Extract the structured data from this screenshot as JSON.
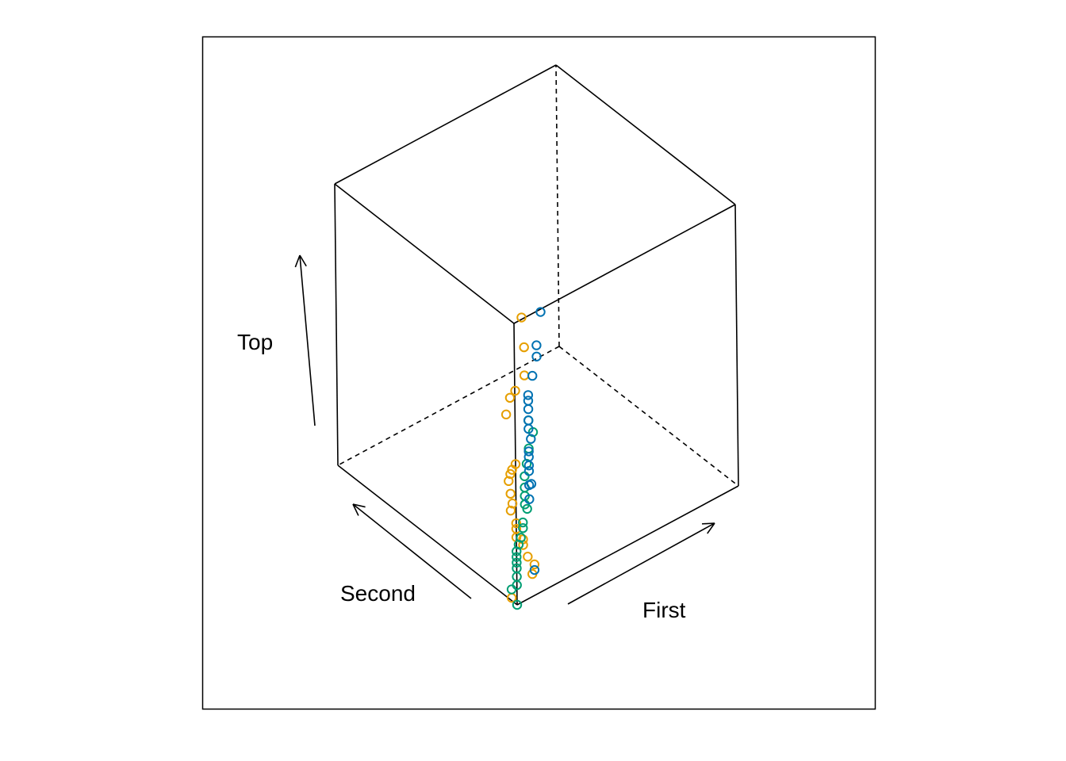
{
  "chart_data": {
    "type": "scatter3d",
    "axes": {
      "first": {
        "label": "First",
        "range": [
          0,
          1
        ]
      },
      "second": {
        "label": "Second",
        "range": [
          0,
          1
        ]
      },
      "top": {
        "label": "Top",
        "range": [
          0,
          1
        ]
      }
    },
    "box": true,
    "series": [
      {
        "color": "#E69F00",
        "points": [
          [
            0.05,
            0.02,
            0.99
          ],
          [
            0.06,
            0.02,
            0.88
          ],
          [
            0.06,
            0.02,
            0.78
          ],
          [
            0.05,
            0.06,
            0.71
          ],
          [
            0.05,
            0.09,
            0.67
          ],
          [
            0.04,
            0.1,
            0.61
          ],
          [
            0.0,
            0.0,
            0.5
          ],
          [
            0.0,
            0.02,
            0.47
          ],
          [
            0.0,
            0.03,
            0.45
          ],
          [
            0.0,
            0.04,
            0.42
          ],
          [
            0.0,
            0.03,
            0.38
          ],
          [
            0.0,
            0.02,
            0.35
          ],
          [
            0.0,
            0.03,
            0.32
          ],
          [
            0.0,
            0.0,
            0.29
          ],
          [
            0.0,
            0.0,
            0.27
          ],
          [
            0.0,
            0.0,
            0.24
          ],
          [
            0.03,
            0.0,
            0.22
          ],
          [
            0.03,
            0.0,
            0.2
          ],
          [
            0.05,
            0.0,
            0.15
          ],
          [
            0.08,
            0.0,
            0.11
          ],
          [
            0.07,
            0.0,
            0.08
          ],
          [
            0.0,
            0.03,
            0.01
          ]
        ]
      },
      {
        "color": "#009E73",
        "points": [
          [
            0.06,
            0.0,
            0.63
          ],
          [
            0.08,
            0.0,
            0.58
          ],
          [
            0.06,
            0.0,
            0.53
          ],
          [
            0.05,
            0.0,
            0.48
          ],
          [
            0.04,
            0.0,
            0.44
          ],
          [
            0.04,
            0.0,
            0.4
          ],
          [
            0.04,
            0.0,
            0.37
          ],
          [
            0.04,
            0.0,
            0.34
          ],
          [
            0.05,
            0.0,
            0.32
          ],
          [
            0.03,
            0.0,
            0.28
          ],
          [
            0.03,
            0.0,
            0.26
          ],
          [
            0.02,
            0.0,
            0.23
          ],
          [
            0.01,
            0.0,
            0.21
          ],
          [
            0.0,
            0.0,
            0.19
          ],
          [
            0.0,
            0.0,
            0.17
          ],
          [
            0.0,
            0.0,
            0.15
          ],
          [
            0.0,
            0.0,
            0.13
          ],
          [
            0.0,
            0.0,
            0.1
          ],
          [
            0.0,
            0.0,
            0.07
          ],
          [
            0.0,
            0.03,
            0.04
          ],
          [
            0.0,
            0.0,
            0.0
          ]
        ]
      },
      {
        "color": "#0072B2",
        "points": [
          [
            0.12,
            0.0,
            0.99
          ],
          [
            0.1,
            0.0,
            0.88
          ],
          [
            0.1,
            0.0,
            0.84
          ],
          [
            0.08,
            0.0,
            0.78
          ],
          [
            0.06,
            0.0,
            0.72
          ],
          [
            0.06,
            0.0,
            0.7
          ],
          [
            0.06,
            0.0,
            0.67
          ],
          [
            0.06,
            0.0,
            0.63
          ],
          [
            0.06,
            0.0,
            0.6
          ],
          [
            0.07,
            0.0,
            0.56
          ],
          [
            0.06,
            0.0,
            0.52
          ],
          [
            0.06,
            0.0,
            0.5
          ],
          [
            0.06,
            0.0,
            0.47
          ],
          [
            0.06,
            0.0,
            0.45
          ],
          [
            0.06,
            0.0,
            0.4
          ],
          [
            0.07,
            0.0,
            0.4
          ],
          [
            0.06,
            0.0,
            0.35
          ],
          [
            0.08,
            0.0,
            0.09
          ]
        ]
      }
    ]
  }
}
